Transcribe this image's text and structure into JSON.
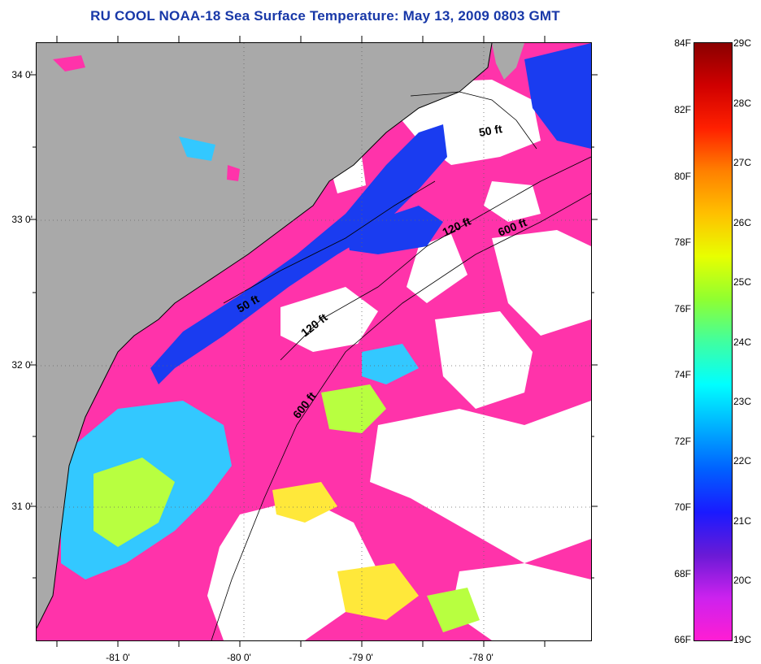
{
  "title": "RU COOL  NOAA-18  Sea Surface Temperature:  May 13, 2009 0803 GMT",
  "map": {
    "latitude_labels": [
      "34 0'",
      "33 0'",
      "32 0'",
      "31 0'"
    ],
    "longitude_labels": [
      "-81 0'",
      "-80 0'",
      "-79 0'",
      "-78 0'"
    ],
    "depth_contour_labels": [
      "50 ft",
      "120 ft",
      "600 ft",
      "50 ft",
      "120 ft",
      "600 ft"
    ],
    "colors": {
      "land": "#a9a9a9",
      "cloud": "#ffffff",
      "cold_sst": "#ff33aa",
      "blue": "#1a3cf0",
      "cyan": "#33c8ff",
      "green_yellow": "#b8ff40",
      "yellow": "#ffe83a"
    }
  },
  "colorbar": {
    "fahrenheit_labels": [
      "84F",
      "82F",
      "80F",
      "78F",
      "76F",
      "74F",
      "72F",
      "70F",
      "68F",
      "66F"
    ],
    "celsius_labels": [
      "29C",
      "28C",
      "27C",
      "26C",
      "25C",
      "24C",
      "23C",
      "22C",
      "21C",
      "20C",
      "19C"
    ],
    "colors": [
      "#ff1dd3",
      "#cc22ee",
      "#6a1ad6",
      "#1a1aff",
      "#0060ff",
      "#00b0ff",
      "#00ffff",
      "#40ffa0",
      "#90ff30",
      "#e8ff00",
      "#ffc000",
      "#ff8000",
      "#ff2000",
      "#d00000",
      "#8a0000"
    ]
  }
}
